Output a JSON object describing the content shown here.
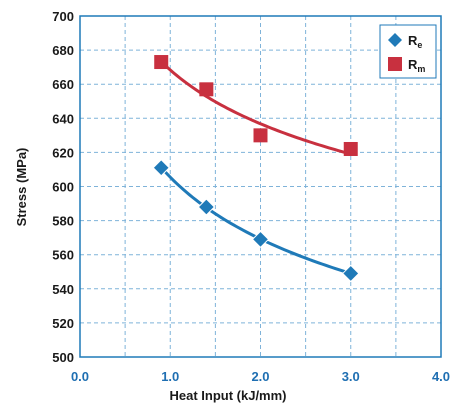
{
  "chart_data": {
    "type": "scatter",
    "title": "",
    "xlabel": "Heat Input (kJ/mm)",
    "ylabel": "Stress (MPa)",
    "xlim": [
      0.0,
      4.0
    ],
    "ylim": [
      500,
      700
    ],
    "x_ticks": [
      "0.0",
      "1.0",
      "2.0",
      "3.0",
      "4.0"
    ],
    "y_ticks": [
      "500",
      "520",
      "540",
      "560",
      "580",
      "600",
      "620",
      "640",
      "660",
      "680",
      "700"
    ],
    "grid": true,
    "legend_position": "top-right",
    "series": [
      {
        "name": "Re",
        "label_main": "R",
        "label_sub": "e",
        "marker": "diamond",
        "color": "#1f7ab8",
        "x": [
          0.9,
          1.4,
          2.0,
          3.0
        ],
        "y": [
          611,
          588,
          569,
          549
        ]
      },
      {
        "name": "Rm",
        "label_main": "R",
        "label_sub": "m",
        "marker": "square",
        "color": "#c8303f",
        "x": [
          0.9,
          1.4,
          2.0,
          3.0
        ],
        "y": [
          673,
          657,
          630,
          622
        ]
      }
    ]
  }
}
